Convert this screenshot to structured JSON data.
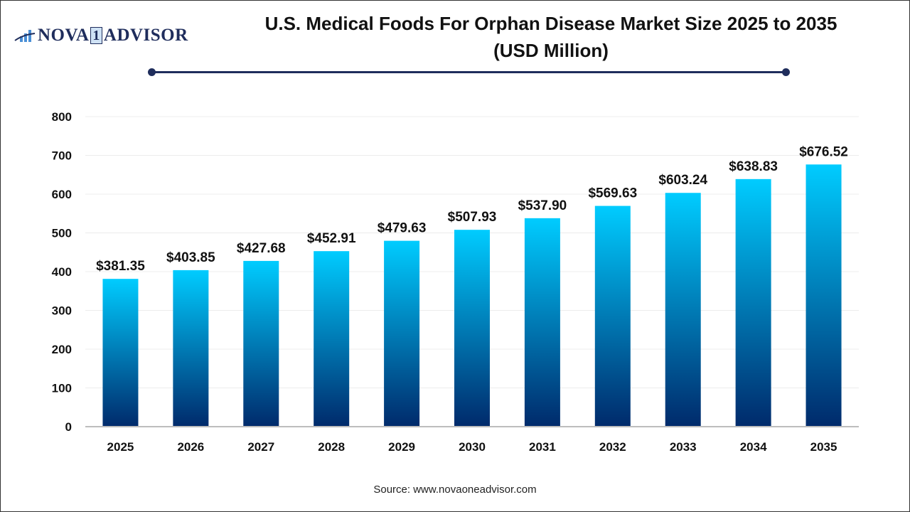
{
  "logo": {
    "text_left": "NOVA",
    "text_mid": "1",
    "text_right": "ADVISOR"
  },
  "title_line1": "U.S. Medical Foods For Orphan Disease Market Size 2025 to 2035",
  "title_line2": "(USD Million)",
  "source": "Source: www.novaoneadvisor.com",
  "chart_data": {
    "type": "bar",
    "title": "U.S. Medical Foods For Orphan Disease Market Size 2025 to 2035 (USD Million)",
    "categories": [
      "2025",
      "2026",
      "2027",
      "2028",
      "2029",
      "2030",
      "2031",
      "2032",
      "2033",
      "2034",
      "2035"
    ],
    "values": [
      381.35,
      403.85,
      427.68,
      452.91,
      479.63,
      507.93,
      537.9,
      569.63,
      603.24,
      638.83,
      676.52
    ],
    "labels": [
      "$381.35",
      "$403.85",
      "$427.68",
      "$452.91",
      "$479.63",
      "$507.93",
      "$537.90",
      "$569.63",
      "$603.24",
      "$638.83",
      "$676.52"
    ],
    "ylim": [
      0,
      800
    ],
    "yticks": [
      0,
      100,
      200,
      300,
      400,
      500,
      600,
      700,
      800
    ],
    "grid": true,
    "colors": {
      "bar_top": "#00CCFF",
      "bar_bottom": "#002A6B",
      "accent": "#1F2D5C"
    }
  }
}
